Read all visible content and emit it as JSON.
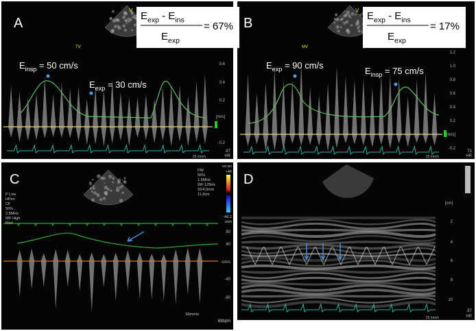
{
  "panels": [
    {
      "label": "A",
      "probe": "TV",
      "marker": "V",
      "formula": {
        "e1": "E",
        "s1": "exp",
        "mid": " - E",
        "s2": "ins",
        "de": "E",
        "ds": "exp",
        "result": "= 67%"
      },
      "annotations": [
        {
          "e": "E",
          "s": "insp",
          "rest": " = 50 cm/s"
        },
        {
          "e": "E",
          "s": "exp",
          "rest": " = 30 cm/s"
        }
      ],
      "scale": [
        "0.6",
        "0.4",
        "0.2",
        "[m/s]",
        "-0.2"
      ],
      "hr": "87",
      "hr_label": "HR",
      "speed": "25 mm/s"
    },
    {
      "label": "B",
      "probe": "MV",
      "marker": "V",
      "formula": {
        "e1": "E",
        "s1": "exp",
        "mid": " - E",
        "s2": "ins",
        "de": "E",
        "ds": "exp",
        "result": "= 17%"
      },
      "annotations": [
        {
          "e": "E",
          "s": "exp",
          "rest": " = 90 cm/s"
        },
        {
          "e": "E",
          "s": "insp",
          "rest": " = 75 cm/s"
        }
      ],
      "scale": [
        "1.2",
        "1.0",
        "0.8",
        "0.6",
        "0.4",
        "0.2",
        "[m/s]",
        "-0.2"
      ],
      "hr": "71",
      "hr_label": "HR",
      "speed": "25 mm/s"
    },
    {
      "label": "C",
      "left_info": [
        "P Low",
        "HPen",
        "CF",
        "50%",
        "2.5MHz",
        "WF High",
        "Med"
      ],
      "right_info": [
        "PW",
        "55%",
        "1.6MHz",
        "WF 125Hz",
        "SV4.0mm",
        "11.3cm"
      ],
      "color_scale": [
        "M3 M4",
        "+46",
        "-46.2",
        "cm/s"
      ],
      "scale": [
        "80",
        "40",
        "cm/s",
        "-40",
        "-80"
      ],
      "speed": "50mm/s",
      "hr": "89bpm"
    },
    {
      "label": "D",
      "scale": [
        "[cm]",
        "2",
        "4",
        "6",
        "8",
        "10"
      ],
      "hr": "87",
      "hr_label": "HR",
      "speed": "25 mm/s"
    }
  ]
}
